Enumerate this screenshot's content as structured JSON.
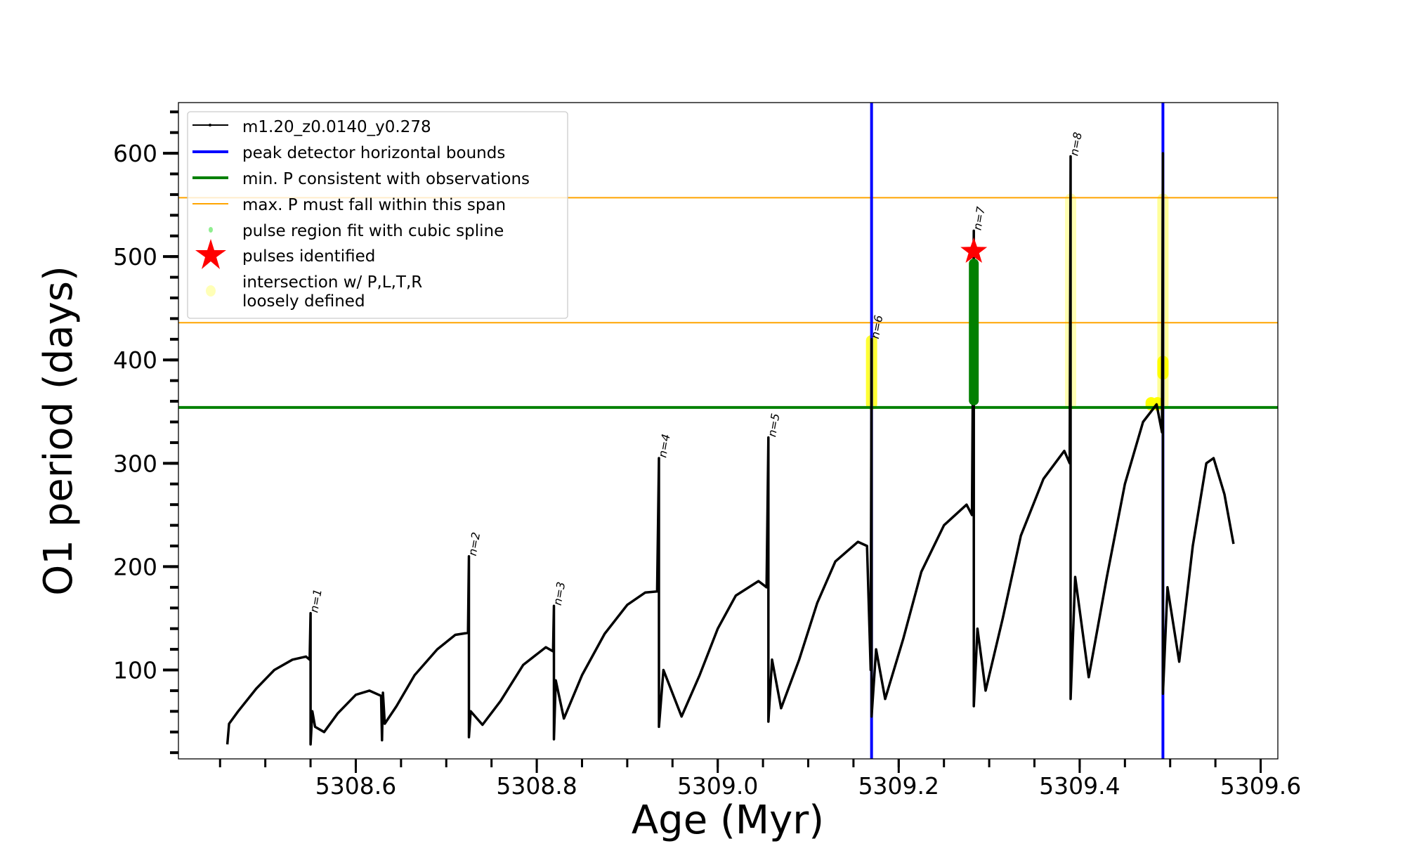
{
  "chart_data": {
    "type": "line",
    "title": "",
    "xlabel": "Age (Myr)",
    "ylabel": "O1 period (days)",
    "xlim": [
      5308.404,
      5309.619
    ],
    "ylim": [
      14,
      649
    ],
    "xticks": [
      5308.6,
      5308.8,
      5309.0,
      5309.2,
      5309.4,
      5309.6
    ],
    "xtick_labels": [
      "5308.6",
      "5308.8",
      "5309.0",
      "5309.2",
      "5309.4",
      "5309.6"
    ],
    "xminor_step": 0.05,
    "yticks": [
      100,
      200,
      300,
      400,
      500,
      600
    ],
    "ytick_labels": [
      "100",
      "200",
      "300",
      "400",
      "500",
      "600"
    ],
    "yminor_step": 20,
    "grid": false,
    "legend_placement": "top-left",
    "legend": [
      "m1.20_z0.0140_y0.278",
      "peak detector horizontal bounds",
      "min. P consistent with observations",
      "max. P must fall within this span",
      "pulse region fit with cubic spline",
      "pulses identified",
      "intersection w/ P,L,T,R",
      "loosely defined"
    ],
    "colors": {
      "track": "#000000",
      "bounds": "#0000ff",
      "minP": "#008000",
      "maxP": "#ffa500",
      "spline": "#90ee90",
      "star": "#ff0000",
      "intersection": "#ffff00"
    },
    "series": [
      {
        "name": "m1.20_z0.0140_y0.278",
        "points": [
          [
            5308.458,
            28
          ],
          [
            5308.46,
            48
          ],
          [
            5308.47,
            60
          ],
          [
            5308.49,
            82
          ],
          [
            5308.51,
            100
          ],
          [
            5308.53,
            110
          ],
          [
            5308.545,
            113
          ],
          [
            5308.549,
            110
          ],
          [
            5308.55,
            155
          ],
          [
            5308.55,
            28
          ],
          [
            5308.552,
            60
          ],
          [
            5308.555,
            45
          ],
          [
            5308.565,
            40
          ],
          [
            5308.58,
            58
          ],
          [
            5308.6,
            76
          ],
          [
            5308.615,
            80
          ],
          [
            5308.628,
            75
          ],
          [
            5308.629,
            32
          ],
          [
            5308.63,
            78
          ],
          [
            5308.632,
            48
          ],
          [
            5308.645,
            65
          ],
          [
            5308.665,
            95
          ],
          [
            5308.69,
            120
          ],
          [
            5308.71,
            134
          ],
          [
            5308.724,
            136
          ],
          [
            5308.725,
            210
          ],
          [
            5308.725,
            35
          ],
          [
            5308.727,
            60
          ],
          [
            5308.74,
            47
          ],
          [
            5308.76,
            70
          ],
          [
            5308.785,
            105
          ],
          [
            5308.81,
            122
          ],
          [
            5308.818,
            118
          ],
          [
            5308.819,
            162
          ],
          [
            5308.819,
            33
          ],
          [
            5308.821,
            90
          ],
          [
            5308.83,
            53
          ],
          [
            5308.85,
            95
          ],
          [
            5308.875,
            135
          ],
          [
            5308.9,
            163
          ],
          [
            5308.92,
            175
          ],
          [
            5308.933,
            176
          ],
          [
            5308.935,
            305
          ],
          [
            5308.935,
            45
          ],
          [
            5308.94,
            100
          ],
          [
            5308.96,
            55
          ],
          [
            5308.98,
            95
          ],
          [
            5309.0,
            140
          ],
          [
            5309.02,
            172
          ],
          [
            5309.045,
            186
          ],
          [
            5309.054,
            180
          ],
          [
            5309.056,
            325
          ],
          [
            5309.056,
            50
          ],
          [
            5309.06,
            110
          ],
          [
            5309.07,
            63
          ],
          [
            5309.09,
            110
          ],
          [
            5309.11,
            165
          ],
          [
            5309.13,
            205
          ],
          [
            5309.155,
            224
          ],
          [
            5309.165,
            220
          ],
          [
            5309.169,
            100
          ],
          [
            5309.17,
            420
          ],
          [
            5309.17,
            55
          ],
          [
            5309.175,
            120
          ],
          [
            5309.185,
            72
          ],
          [
            5309.205,
            130
          ],
          [
            5309.225,
            195
          ],
          [
            5309.25,
            240
          ],
          [
            5309.275,
            260
          ],
          [
            5309.281,
            250
          ],
          [
            5309.283,
            525
          ],
          [
            5309.283,
            65
          ],
          [
            5309.287,
            140
          ],
          [
            5309.296,
            80
          ],
          [
            5309.315,
            150
          ],
          [
            5309.335,
            230
          ],
          [
            5309.36,
            285
          ],
          [
            5309.383,
            312
          ],
          [
            5309.389,
            300
          ],
          [
            5309.39,
            597
          ],
          [
            5309.39,
            72
          ],
          [
            5309.395,
            190
          ],
          [
            5309.41,
            93
          ],
          [
            5309.43,
            190
          ],
          [
            5309.45,
            280
          ],
          [
            5309.47,
            340
          ],
          [
            5309.485,
            357
          ],
          [
            5309.491,
            330
          ],
          [
            5309.492,
            600
          ],
          [
            5309.492,
            77
          ],
          [
            5309.497,
            180
          ],
          [
            5309.51,
            108
          ],
          [
            5309.525,
            220
          ],
          [
            5309.54,
            300
          ],
          [
            5309.548,
            305
          ],
          [
            5309.56,
            270
          ],
          [
            5309.57,
            222
          ]
        ]
      }
    ],
    "vlines": [
      5309.17,
      5309.492
    ],
    "min_period": 354,
    "max_period_span": [
      436,
      557
    ],
    "intersection_regions": [
      {
        "x": 5309.17,
        "y_range": [
          356,
          420
        ],
        "strength": 0.8
      },
      {
        "x": 5309.39,
        "y_range": [
          356,
          557
        ],
        "strength": 0.3
      },
      {
        "x": 5309.492,
        "y_range": [
          356,
          557
        ],
        "strength": 0.4
      },
      {
        "x": 5309.492,
        "y_range": [
          385,
          400
        ],
        "strength": 1
      },
      {
        "x": 5309.479,
        "y_range": [
          355,
          360
        ],
        "strength": 1
      },
      {
        "x": 5309.486,
        "y_range": [
          355,
          360
        ],
        "strength": 1
      }
    ],
    "spline_region": {
      "x": 5309.283,
      "y_range": [
        356,
        498
      ]
    },
    "pulses_identified": [
      [
        5309.283,
        505
      ]
    ],
    "annotations": [
      {
        "text": "n=1",
        "x": 5308.55,
        "y": 155
      },
      {
        "text": "n=2",
        "x": 5308.725,
        "y": 210
      },
      {
        "text": "n=3",
        "x": 5308.819,
        "y": 162
      },
      {
        "text": "n=4",
        "x": 5308.935,
        "y": 305
      },
      {
        "text": "n=5",
        "x": 5309.056,
        "y": 325
      },
      {
        "text": "n=6",
        "x": 5309.17,
        "y": 420
      },
      {
        "text": "n=7",
        "x": 5309.283,
        "y": 525
      },
      {
        "text": "n=8",
        "x": 5309.39,
        "y": 597
      }
    ]
  }
}
